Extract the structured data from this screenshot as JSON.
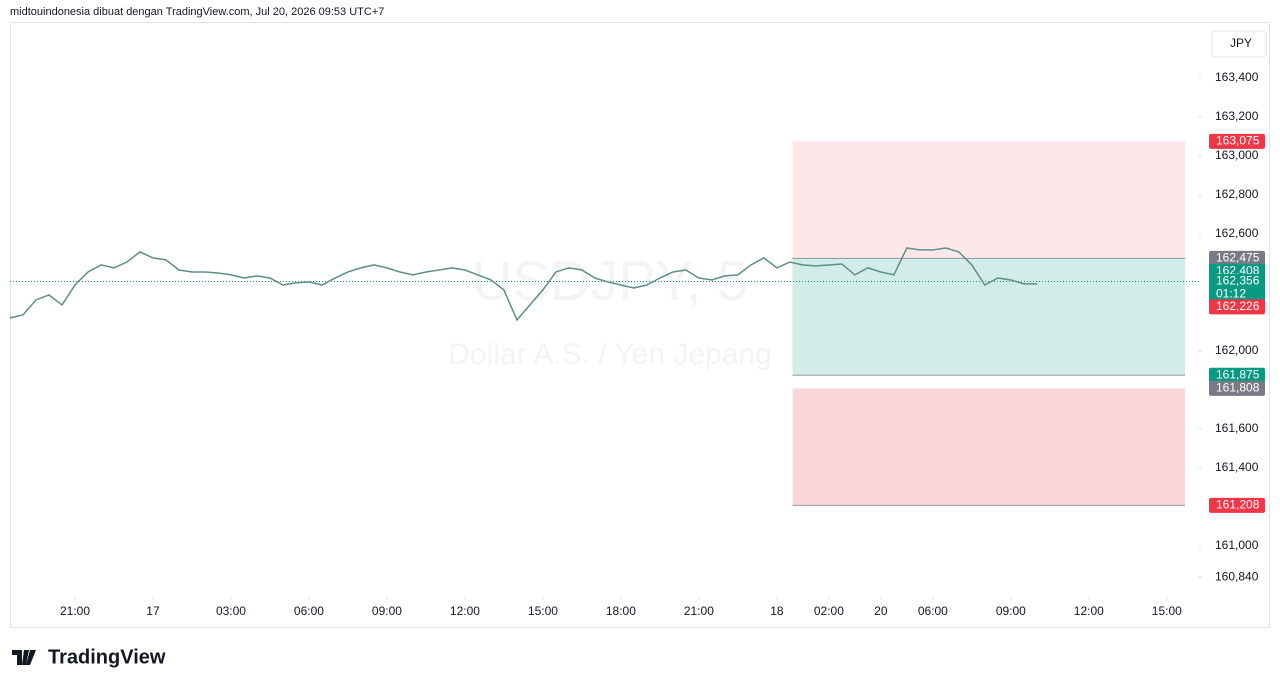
{
  "header": {
    "text": "midtouindonesia dibuat dengan TradingView.com, Jul 20, 2026 09:53 UTC+7"
  },
  "footer": {
    "logo": "TradingView"
  },
  "chart_data": {
    "type": "line",
    "watermark": "USDJPY, 5",
    "watermark_subtitle": "Dollar A.S. / Yen Jepang",
    "currency": "JPY",
    "color": "#5d8f86",
    "xlim": [
      -2.5,
      42.7
    ],
    "ylim": [
      160.738,
      163.687
    ],
    "xticks": [
      {
        "value": 0,
        "label": "21:00"
      },
      {
        "value": 3,
        "label": "17"
      },
      {
        "value": 6,
        "label": "03:00"
      },
      {
        "value": 9,
        "label": "06:00"
      },
      {
        "value": 12,
        "label": "09:00"
      },
      {
        "value": 15,
        "label": "12:00"
      },
      {
        "value": 18,
        "label": "15:00"
      },
      {
        "value": 21,
        "label": "18:00"
      },
      {
        "value": 24,
        "label": "21:00"
      },
      {
        "value": 27,
        "label": "18"
      },
      {
        "value": 29,
        "label": "02:00"
      },
      {
        "value": 31,
        "label": "20"
      },
      {
        "value": 33,
        "label": "06:00"
      },
      {
        "value": 36,
        "label": "09:00"
      },
      {
        "value": 39,
        "label": "12:00"
      },
      {
        "value": 42,
        "label": "15:00"
      }
    ],
    "yticks": [
      {
        "value": 163.4,
        "label": "163,400"
      },
      {
        "value": 163.2,
        "label": "163,200"
      },
      {
        "value": 163.0,
        "label": "163,000"
      },
      {
        "value": 162.8,
        "label": "162,800"
      },
      {
        "value": 162.6,
        "label": "162,600"
      },
      {
        "value": 162.0,
        "label": "162,000"
      },
      {
        "value": 161.6,
        "label": "161,600"
      },
      {
        "value": 161.4,
        "label": "161,400"
      },
      {
        "value": 161.0,
        "label": "161,000"
      },
      {
        "value": 160.84,
        "label": "160,840"
      }
    ],
    "x": [
      -2.5,
      -2,
      -1.5,
      -1,
      -0.5,
      0,
      0.5,
      1,
      1.5,
      2,
      2.5,
      3,
      3.5,
      4,
      4.5,
      5,
      5.5,
      6,
      6.5,
      7,
      7.5,
      8,
      8.5,
      9,
      9.5,
      10,
      10.5,
      11,
      11.5,
      12,
      12.5,
      13,
      13.5,
      14,
      14.5,
      15,
      15.5,
      16,
      16.5,
      17,
      17.5,
      18,
      18.5,
      19,
      19.5,
      20,
      20.5,
      21,
      21.5,
      22,
      22.5,
      23,
      23.5,
      24,
      24.5,
      25,
      25.5,
      26,
      26.5,
      27,
      27.5,
      28,
      28.5,
      29,
      29.5,
      30,
      30.5,
      31,
      31.5,
      32,
      32.5,
      33,
      33.5,
      34,
      34.5,
      35,
      35.5,
      36,
      36.5,
      37
    ],
    "values": [
      162.169,
      162.185,
      162.262,
      162.287,
      162.236,
      162.338,
      162.405,
      162.441,
      162.426,
      162.456,
      162.508,
      162.477,
      162.467,
      162.415,
      162.405,
      162.405,
      162.4,
      162.39,
      162.374,
      162.385,
      162.374,
      162.338,
      162.349,
      162.354,
      162.338,
      162.374,
      162.405,
      162.426,
      162.441,
      162.426,
      162.405,
      162.39,
      162.405,
      162.415,
      162.426,
      162.415,
      162.39,
      162.364,
      162.313,
      162.159,
      162.236,
      162.313,
      162.405,
      162.426,
      162.415,
      162.374,
      162.354,
      162.338,
      162.323,
      162.338,
      162.374,
      162.405,
      162.415,
      162.374,
      162.364,
      162.385,
      162.39,
      162.441,
      162.477,
      162.426,
      162.456,
      162.441,
      162.436,
      162.441,
      162.446,
      162.39,
      162.426,
      162.405,
      162.39,
      162.528,
      162.518,
      162.518,
      162.528,
      162.508,
      162.441,
      162.338,
      162.374,
      162.364,
      162.344,
      162.344
    ],
    "current_price": 162.356,
    "zones": [
      {
        "start": 27.6,
        "end": 42.7,
        "top": 163.075,
        "bottom": 162.475,
        "color": "rgba(242,54,69,0.12)"
      },
      {
        "start": 27.6,
        "end": 42.7,
        "top": 162.475,
        "bottom": 161.875,
        "color": "rgba(8,153,129,0.18)"
      },
      {
        "start": 27.6,
        "end": 42.7,
        "top": 161.808,
        "bottom": 161.208,
        "color": "rgba(242,54,69,0.2)"
      }
    ],
    "price_labels": [
      {
        "value": 163.075,
        "label": "163,075",
        "color": "#f23645"
      },
      {
        "value": 162.475,
        "label": "162,475",
        "color": "#787b86"
      },
      {
        "value": 162.408,
        "label": "162,408",
        "color": "#089981"
      },
      {
        "value": 162.356,
        "label": "162,356",
        "sublabel": "01:12",
        "color": "#089981"
      },
      {
        "value": 162.226,
        "label": "162,226",
        "color": "#f23645"
      },
      {
        "value": 161.875,
        "label": "161,875",
        "color": "#089981"
      },
      {
        "value": 161.808,
        "label": "161,808",
        "color": "#787b86"
      },
      {
        "value": 161.208,
        "label": "161,208",
        "color": "#f23645"
      }
    ]
  }
}
